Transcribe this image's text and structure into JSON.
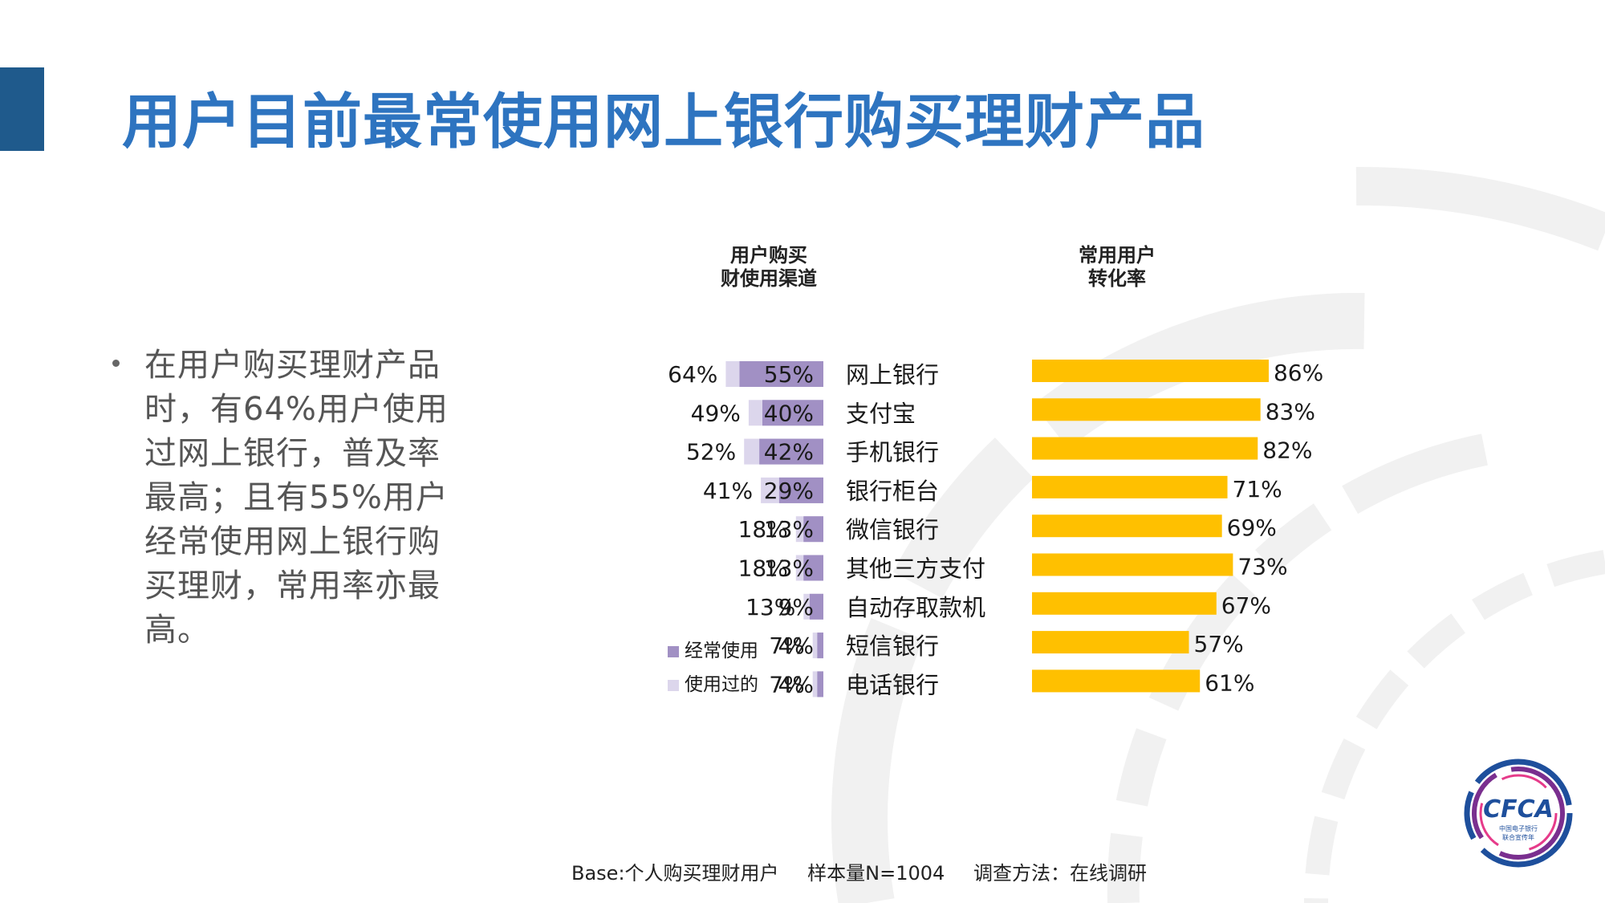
{
  "title": "用户目前最常使用网上银行购买理财产品",
  "bullet": "在用户购买理财产品时，有64%用户使用过网上银行，普及率最高；且有55%用户经常使用网上银行购买理财，常用率亦最高。",
  "headers": {
    "left": "用户购买\n财使用渠道",
    "right": "常用用户\n转化率"
  },
  "footnote": {
    "base": "Base:个人购买理财用户",
    "sample": "样本量N=1004",
    "method": "调查方法：在线调研"
  },
  "logo": {
    "text": "CFCA",
    "sub1": "中国电子银行",
    "sub2": "联合宣传年"
  },
  "colors": {
    "title": "#2e74c0",
    "accent_bar": "#1f5a8c",
    "frequent": "#a190c4",
    "used": "#dcd6ec",
    "conversion": "#ffc000"
  },
  "chart_data": [
    {
      "type": "bar",
      "orientation": "horizontal",
      "categories": [
        "网上银行",
        "支付宝",
        "手机银行",
        "银行柜台",
        "微信银行",
        "其他三方支付",
        "自动存取款机",
        "短信银行",
        "电话银行"
      ],
      "series": [
        {
          "name": "经常使用",
          "values": [
            55,
            40,
            42,
            29,
            13,
            13,
            9,
            4,
            4
          ],
          "unit": "%"
        },
        {
          "name": "使用过的",
          "values": [
            64,
            49,
            52,
            41,
            18,
            18,
            13,
            7,
            7
          ],
          "unit": "%"
        }
      ],
      "legend": [
        "经常使用",
        "使用过的"
      ],
      "legend_position": "bottom-left",
      "value_labels": {
        "frequent": [
          "55%",
          "40%",
          "42%",
          "29%",
          "13%",
          "13%",
          "9%",
          "4%",
          "4%"
        ],
        "used": [
          "64%",
          "49%",
          "52%",
          "41%",
          "18%",
          "18%",
          "13%",
          "7%",
          "7%"
        ]
      },
      "direction": "right-to-left",
      "xlim": [
        0,
        100
      ],
      "grid": false
    },
    {
      "type": "bar",
      "orientation": "horizontal",
      "categories": [
        "网上银行",
        "支付宝",
        "手机银行",
        "银行柜台",
        "微信银行",
        "其他三方支付",
        "自动存取款机",
        "短信银行",
        "电话银行"
      ],
      "series": [
        {
          "values": [
            86,
            83,
            82,
            71,
            69,
            73,
            67,
            57,
            61
          ],
          "unit": "%"
        }
      ],
      "value_labels": [
        "86%",
        "83%",
        "82%",
        "71%",
        "69%",
        "73%",
        "67%",
        "57%",
        "61%"
      ],
      "xlim": [
        0,
        100
      ],
      "grid": false
    }
  ]
}
